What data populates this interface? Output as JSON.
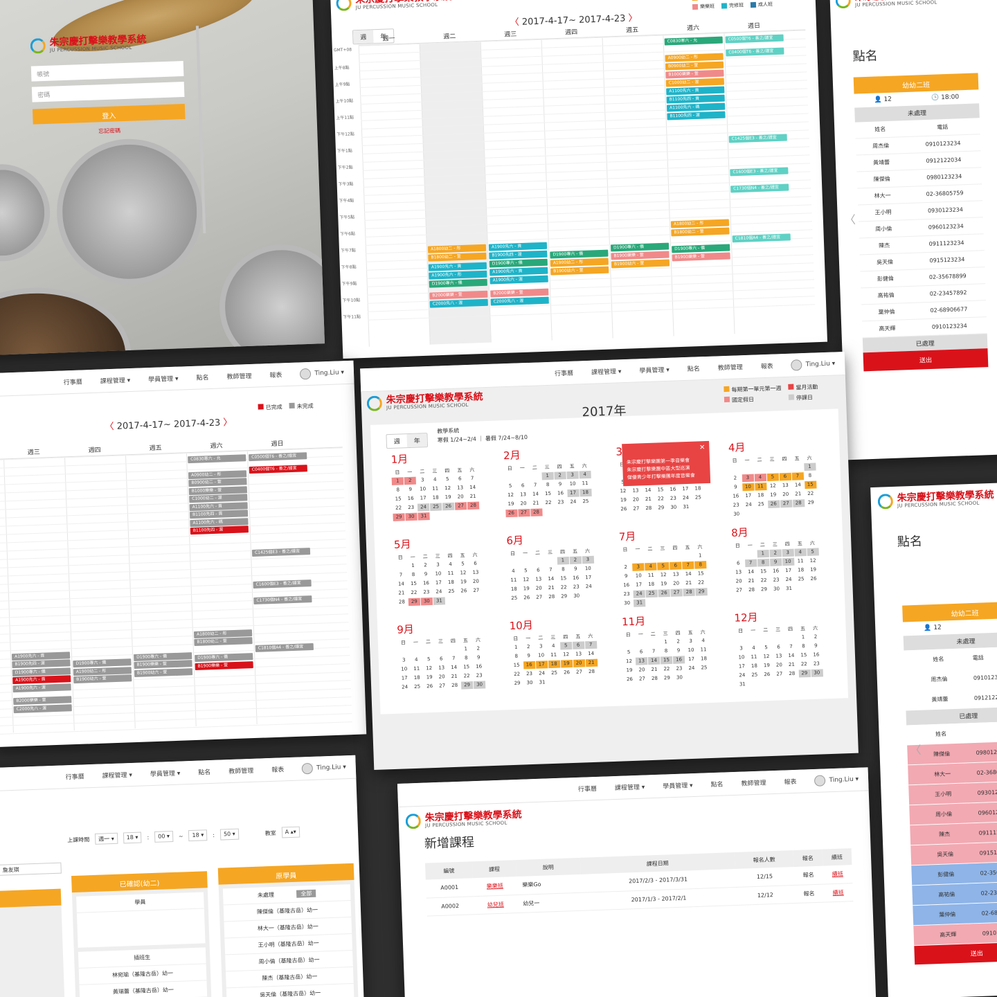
{
  "brand": {
    "name_cn": "朱宗慶打擊樂教學系統",
    "name_en": "JU PERCUSSION MUSIC SCHOOL"
  },
  "nav": {
    "items": [
      "行事曆",
      "課程管理 ▾",
      "學員管理 ▾",
      "點名",
      "教師管理",
      "報表"
    ],
    "user": "Ting.Liu ▾"
  },
  "login": {
    "account_placeholder": "帳號",
    "password_placeholder": "密碼",
    "submit": "登入",
    "forgot": "忘記密碼"
  },
  "week": {
    "range": "2017-4-17~ 2017-4-23",
    "tabs": [
      "週",
      "年"
    ],
    "days": [
      "週一",
      "週二",
      "週三",
      "週四",
      "週五",
      "週六",
      "週日"
    ],
    "times": [
      "GMT+08",
      "上午8點",
      "上午9點",
      "上午10點",
      "上午11點",
      "下午12點",
      "下午1點",
      "下午2點",
      "下午3點",
      "下午4點",
      "下午5點",
      "下午6點",
      "下午7點",
      "下午8點",
      "下午9點",
      "下午10點",
      "下午11點"
    ],
    "legend": [
      {
        "label": "幼兒班",
        "color": "#f5a623"
      },
      {
        "label": "基礎班",
        "color": "#d9121a"
      },
      {
        "label": "專修班",
        "color": "#2aa87a"
      },
      {
        "label": "個別班",
        "color": "#5fd1c4"
      },
      {
        "label": "樂樂班",
        "color": "#f08a8a"
      },
      {
        "label": "完修班",
        "color": "#1fb3c8"
      },
      {
        "label": "成人班",
        "color": "#2b7aa8"
      }
    ],
    "events": [
      {
        "col": 5,
        "row": 0.2,
        "label": "C0830寒六 - 允",
        "color": "#2aa87a"
      },
      {
        "col": 6,
        "row": 0.2,
        "label": "C0500個T6 - 善之/譜宜",
        "color": "#5fd1c4"
      },
      {
        "col": 5,
        "row": 1.2,
        "label": "A0900幼二 - 彤",
        "color": "#f5a623"
      },
      {
        "col": 6,
        "row": 1.0,
        "label": "C0400個T6 - 善之/譜宜",
        "color": "#5fd1c4"
      },
      {
        "col": 5,
        "row": 1.7,
        "label": "B0900幼二 - 萱",
        "color": "#f5a623"
      },
      {
        "col": 5,
        "row": 2.2,
        "label": "B1000樂樂 - 萱",
        "color": "#f08a8a"
      },
      {
        "col": 5,
        "row": 2.7,
        "label": "C1000幼二 - 渥",
        "color": "#f5a623"
      },
      {
        "col": 5,
        "row": 3.2,
        "label": "A1100先六 - 貢",
        "color": "#1fb3c8"
      },
      {
        "col": 5,
        "row": 3.7,
        "label": "B1100先四 - 貢",
        "color": "#1fb3c8"
      },
      {
        "col": 5,
        "row": 4.2,
        "label": "A1100先六 - 碼",
        "color": "#1fb3c8"
      },
      {
        "col": 5,
        "row": 4.7,
        "label": "B1100先四 - 渥",
        "color": "#1fb3c8"
      },
      {
        "col": 6,
        "row": 6.2,
        "label": "C1425個E3 - 善之/譜宜",
        "color": "#5fd1c4"
      },
      {
        "col": 6,
        "row": 8.2,
        "label": "C1600個E3 - 善之/譜宜",
        "color": "#5fd1c4"
      },
      {
        "col": 6,
        "row": 9.2,
        "label": "C1730個N4 - 善之/譜宜",
        "color": "#5fd1c4"
      },
      {
        "col": 5,
        "row": 11.2,
        "label": "A1800幼二 - 彤",
        "color": "#f5a623"
      },
      {
        "col": 5,
        "row": 11.7,
        "label": "B1800幼二 - 萱",
        "color": "#f5a623"
      },
      {
        "col": 6,
        "row": 12.2,
        "label": "C1810個A4 - 善之/譜宜",
        "color": "#5fd1c4"
      },
      {
        "col": 1,
        "row": 12.2,
        "label": "A1800幼二 - 彤",
        "color": "#f5a623"
      },
      {
        "col": 2,
        "row": 12.2,
        "label": "A1900先六 - 貢",
        "color": "#1fb3c8"
      },
      {
        "col": 1,
        "row": 12.7,
        "label": "B1800幼二 - 萱",
        "color": "#f5a623"
      },
      {
        "col": 2,
        "row": 12.7,
        "label": "B1900先四 - 渥",
        "color": "#1fb3c8"
      },
      {
        "col": 3,
        "row": 12.8,
        "label": "D1900專六 - 儀",
        "color": "#2aa87a"
      },
      {
        "col": 4,
        "row": 12.5,
        "label": "D1900專六 - 儀",
        "color": "#2aa87a"
      },
      {
        "col": 5,
        "row": 12.7,
        "label": "D1900專六 - 儀",
        "color": "#2aa87a"
      },
      {
        "col": 5,
        "row": 13.2,
        "label": "B1900樂樂 - 萱",
        "color": "#f08a8a"
      },
      {
        "col": 4,
        "row": 13.0,
        "label": "B1900樂樂 - 萱",
        "color": "#f08a8a"
      },
      {
        "col": 3,
        "row": 13.3,
        "label": "A1900幼二 - 彤",
        "color": "#f5a623"
      },
      {
        "col": 2,
        "row": 13.2,
        "label": "D1900專六 - 儀",
        "color": "#2aa87a"
      },
      {
        "col": 1,
        "row": 13.3,
        "label": "A1900先六 - 貢",
        "color": "#1fb3c8"
      },
      {
        "col": 4,
        "row": 13.5,
        "label": "B1900幼六 - 萱",
        "color": "#f5a623"
      },
      {
        "col": 3,
        "row": 13.8,
        "label": "B1900幼六 - 萱",
        "color": "#f5a623"
      },
      {
        "col": 2,
        "row": 13.7,
        "label": "A1900先六 - 貢",
        "color": "#1fb3c8"
      },
      {
        "col": 1,
        "row": 13.8,
        "label": "A1900先六 - 彤",
        "color": "#1fb3c8"
      },
      {
        "col": 2,
        "row": 14.2,
        "label": "A1900先六 - 渥",
        "color": "#1fb3c8"
      },
      {
        "col": 1,
        "row": 14.3,
        "label": "D1900專六 - 儀",
        "color": "#2aa87a"
      },
      {
        "col": 2,
        "row": 15.0,
        "label": "B2000樂樂 - 萱",
        "color": "#f08a8a"
      },
      {
        "col": 1,
        "row": 15.0,
        "label": "B2000樂樂 - 萱",
        "color": "#f08a8a"
      },
      {
        "col": 2,
        "row": 15.5,
        "label": "C2000先八 - 渥",
        "color": "#1fb3c8"
      },
      {
        "col": 1,
        "row": 15.5,
        "label": "C2000先八 - 渥",
        "color": "#1fb3c8"
      }
    ]
  },
  "week_gray": {
    "range": "2017-4-17~ 2017-4-23",
    "legend": [
      {
        "label": "已完成",
        "color": "#d9121a"
      },
      {
        "label": "未完成",
        "color": "#999"
      }
    ],
    "days": [
      "週三",
      "週四",
      "週五",
      "週六",
      "週日"
    ]
  },
  "attendance": {
    "title": "點名",
    "class_name": "幼幼二班",
    "count": "12",
    "time": "18:00",
    "pending": "未處理",
    "done": "已處理",
    "col_name": "姓名",
    "col_phone": "電話",
    "submit": "送出",
    "students": [
      {
        "name": "周杰倫",
        "phone": "0910123234"
      },
      {
        "name": "黃靖蕾",
        "phone": "0912122034"
      },
      {
        "name": "陳傑倫",
        "phone": "0980123234"
      },
      {
        "name": "林大一",
        "phone": "02-36805759"
      },
      {
        "name": "王小明",
        "phone": "0930123234"
      },
      {
        "name": "周小倫",
        "phone": "0960123234"
      },
      {
        "name": "陳杰",
        "phone": "0911123234"
      },
      {
        "name": "吳天倫",
        "phone": "0915123234"
      },
      {
        "name": "彭健倫",
        "phone": "02-35678899"
      },
      {
        "name": "高祐倫",
        "phone": "02-23457892"
      },
      {
        "name": "葉仲倫",
        "phone": "02-68906677"
      },
      {
        "name": "高天輝",
        "phone": "0910123234"
      }
    ]
  },
  "year": {
    "title": "2017年",
    "tabs": [
      "週",
      "年"
    ],
    "system": "教學系統",
    "holidays": "寒假 1/24~2/4 ｜ 暑假 7/24~8/10",
    "legend": [
      {
        "label": "每期第一單元第一週",
        "color": "#f5a623"
      },
      {
        "label": "當月活動",
        "color": "#e84444"
      },
      {
        "label": "國定假日",
        "color": "#f08a8a"
      },
      {
        "label": "停課日",
        "color": "#ccc"
      }
    ],
    "weekdays": [
      "日",
      "一",
      "二",
      "三",
      "四",
      "五",
      "六"
    ],
    "popup": "朱宗慶打擊樂團第一季音樂會\n朱宗慶打擊樂團中區大型巡演\n傑優青少年打擊樂團年度音樂會",
    "months": [
      {
        "name": "1月",
        "start": 0,
        "days": 31,
        "h1": [],
        "h2": [
          1,
          2,
          27,
          28,
          29,
          30,
          31
        ],
        "h3": [
          24,
          25,
          26
        ]
      },
      {
        "name": "2月",
        "start": 3,
        "days": 28,
        "h1": [],
        "h2": [
          26,
          27,
          28
        ],
        "h3": [
          1,
          2,
          3,
          4,
          17,
          18
        ]
      },
      {
        "name": "3月",
        "start": 3,
        "days": 31,
        "h1": [],
        "h2": [],
        "h3": []
      },
      {
        "name": "4月",
        "start": 6,
        "days": 30,
        "h1": [
          5,
          6,
          7,
          10,
          11,
          15
        ],
        "h2": [
          3,
          4
        ],
        "h3": [
          1,
          26,
          27,
          28
        ]
      },
      {
        "name": "5月",
        "start": 1,
        "days": 31,
        "h1": [],
        "h2": [
          29,
          30
        ],
        "h3": [
          31
        ]
      },
      {
        "name": "6月",
        "start": 4,
        "days": 30,
        "h1": [],
        "h2": [],
        "h3": [
          1,
          2,
          3
        ]
      },
      {
        "name": "7月",
        "start": 6,
        "days": 31,
        "h1": [
          3,
          4,
          5,
          6,
          7,
          8
        ],
        "h2": [],
        "h3": [
          24,
          25,
          26,
          27,
          28,
          29,
          31
        ]
      },
      {
        "name": "8月",
        "start": 2,
        "days": 31,
        "h1": [],
        "h2": [],
        "h3": [
          1,
          2,
          3,
          4,
          5,
          7,
          8,
          9,
          10
        ]
      },
      {
        "name": "9月",
        "start": 5,
        "days": 30,
        "h1": [],
        "h2": [],
        "h3": [
          29,
          30
        ]
      },
      {
        "name": "10月",
        "start": 0,
        "days": 31,
        "h1": [
          16,
          17,
          18,
          19,
          20,
          21
        ],
        "h2": [],
        "h3": [
          5,
          6,
          7
        ]
      },
      {
        "name": "11月",
        "start": 3,
        "days": 30,
        "h1": [],
        "h2": [],
        "h3": [
          13,
          14,
          15,
          16
        ]
      },
      {
        "name": "12月",
        "start": 5,
        "days": 31,
        "h1": [],
        "h2": [],
        "h3": [
          29,
          30
        ]
      }
    ]
  },
  "form": {
    "time_label": "上課時間",
    "weekday": "週一 ▾",
    "h1": "18 ▾",
    "m1": "00 ▾",
    "h2": "18 ▾",
    "m2": "50 ▾",
    "room_label": "教室",
    "room": "A ▴▾",
    "teacher": "詹友琪",
    "confirmed": "已確認(幼二)",
    "student": "學員",
    "new_student": "插班生",
    "original": "原學員",
    "pending": "未處理",
    "all": "全部",
    "transfers": [
      "林宛瑜（基隆古岳）幼一",
      "黃瑞蕾（基隆古岳）幼一"
    ],
    "originals": [
      "陳傑倫（基隆古岳）幼一",
      "林大一（基隆古岳）幼一",
      "王小明（基隆古岳）幼一",
      "周小倫（基隆古岳）幼一",
      "陳杰（基隆古岳）幼一",
      "吳天倫（基隆古岳）幼一"
    ]
  },
  "new_course": {
    "title": "新增課程",
    "headers": [
      "編號",
      "課程",
      "說明",
      "課程日期",
      "報名人數",
      "報名",
      "續班"
    ],
    "rows": [
      {
        "id": "A0001",
        "course": "樂樂班",
        "desc": "樂樂Go",
        "date": "2017/2/3 - 2017/3/31",
        "count": "12/15",
        "signup": "報名",
        "cont": "續班"
      },
      {
        "id": "A0002",
        "course": "幼兒班",
        "desc": "幼兒一",
        "date": "2017/1/3 - 2017/2/1",
        "count": "12/12",
        "signup": "報名",
        "cont": "續班"
      }
    ]
  }
}
